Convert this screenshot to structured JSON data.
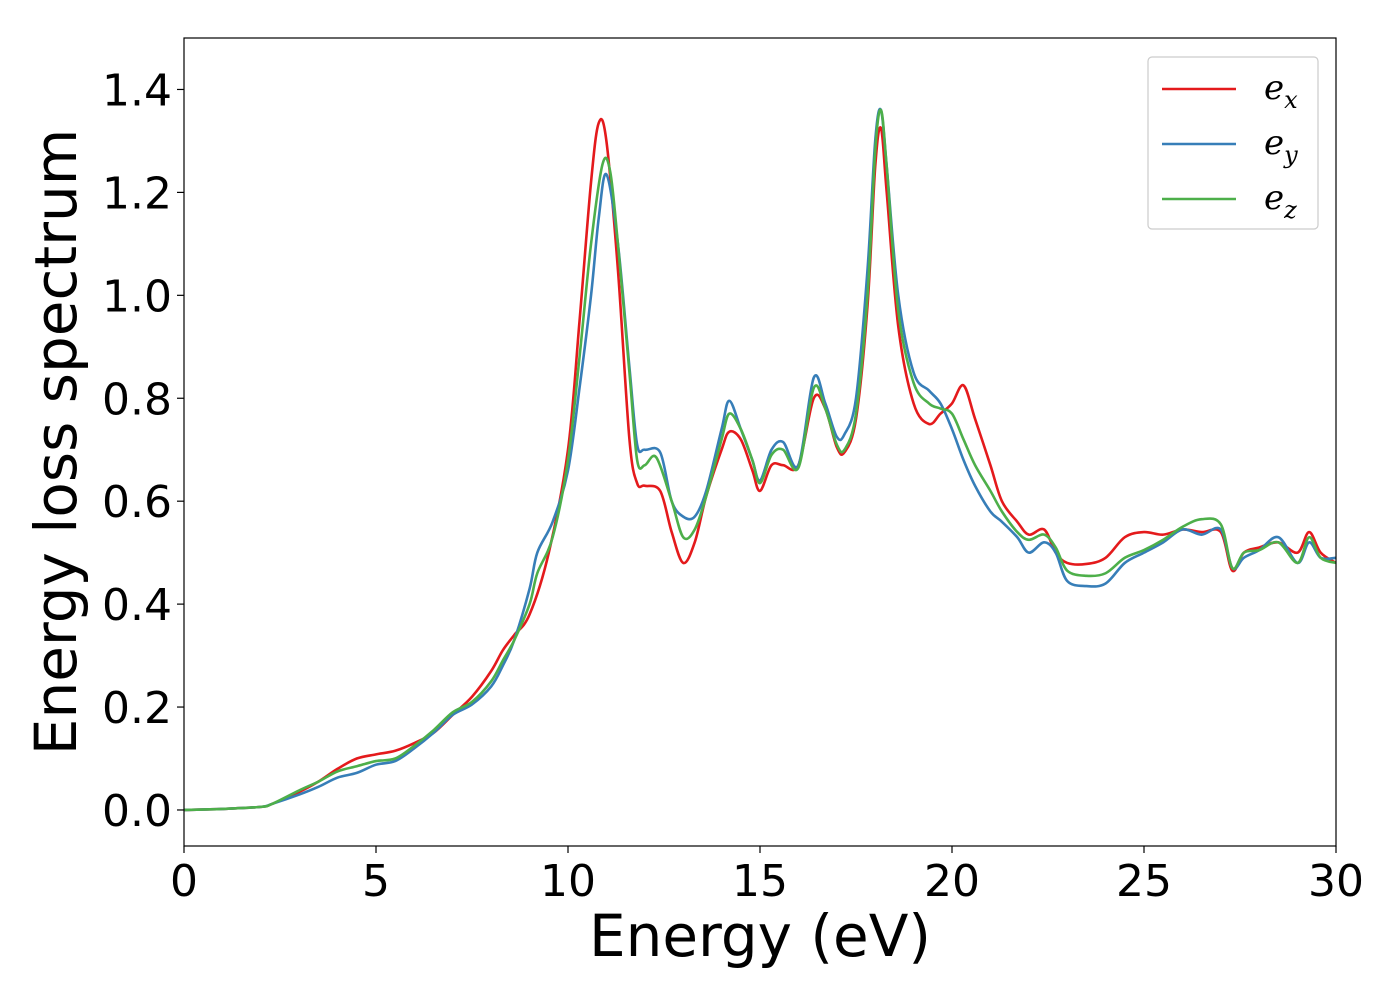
{
  "chart_data": {
    "type": "line",
    "xlabel": "Energy (eV)",
    "ylabel": "Energy loss spectrum",
    "xlim": [
      0,
      30
    ],
    "ylim": [
      -0.07,
      1.5
    ],
    "xticks": [
      0,
      5,
      10,
      15,
      20,
      25,
      30
    ],
    "yticks": [
      0.0,
      0.2,
      0.4,
      0.6,
      0.8,
      1.0,
      1.2,
      1.4
    ],
    "xtick_labels": [
      "0",
      "5",
      "10",
      "15",
      "20",
      "25",
      "30"
    ],
    "ytick_labels": [
      "0.0",
      "0.2",
      "0.4",
      "0.6",
      "0.8",
      "1.0",
      "1.2",
      "1.4"
    ],
    "grid": false,
    "legend_position": "top-right",
    "series": [
      {
        "name": "e_x",
        "label_base": "e",
        "label_sub": "x",
        "color": "#e41a1c",
        "x": [
          0,
          1,
          2,
          2.3,
          3,
          3.5,
          4,
          4.5,
          5,
          5.5,
          6,
          6.5,
          7,
          7.5,
          8,
          8.3,
          8.6,
          9,
          9.5,
          10,
          10.3,
          10.6,
          10.8,
          11,
          11.3,
          11.6,
          11.8,
          12,
          12.4,
          12.7,
          13,
          13.3,
          13.6,
          14,
          14.2,
          14.5,
          14.8,
          15,
          15.3,
          15.6,
          16,
          16.4,
          16.7,
          17,
          17.2,
          17.5,
          17.8,
          18,
          18.15,
          18.3,
          18.6,
          19,
          19.4,
          19.7,
          20,
          20.3,
          20.6,
          21,
          21.3,
          21.7,
          22,
          22.4,
          22.7,
          23,
          23.5,
          24,
          24.5,
          25,
          25.5,
          26,
          26.5,
          27,
          27.3,
          27.6,
          28,
          28.5,
          29,
          29.3,
          29.6,
          30
        ],
        "y": [
          0.0,
          0.002,
          0.006,
          0.012,
          0.035,
          0.055,
          0.08,
          0.1,
          0.108,
          0.115,
          0.13,
          0.15,
          0.185,
          0.22,
          0.27,
          0.31,
          0.34,
          0.38,
          0.5,
          0.7,
          0.95,
          1.22,
          1.335,
          1.3,
          1.05,
          0.72,
          0.635,
          0.63,
          0.62,
          0.54,
          0.48,
          0.52,
          0.61,
          0.7,
          0.735,
          0.72,
          0.66,
          0.62,
          0.67,
          0.67,
          0.67,
          0.8,
          0.78,
          0.705,
          0.695,
          0.76,
          0.98,
          1.25,
          1.325,
          1.2,
          0.94,
          0.79,
          0.75,
          0.77,
          0.79,
          0.825,
          0.76,
          0.67,
          0.6,
          0.56,
          0.535,
          0.545,
          0.5,
          0.48,
          0.478,
          0.49,
          0.53,
          0.54,
          0.535,
          0.545,
          0.54,
          0.54,
          0.465,
          0.5,
          0.51,
          0.52,
          0.5,
          0.54,
          0.5,
          0.48
        ]
      },
      {
        "name": "e_y",
        "label_base": "e",
        "label_sub": "y",
        "color": "#377eb8",
        "x": [
          0,
          1,
          2,
          2.3,
          3,
          3.5,
          4,
          4.5,
          5,
          5.5,
          6,
          6.5,
          7,
          7.5,
          8,
          8.3,
          8.6,
          9,
          9.2,
          9.6,
          10,
          10.3,
          10.6,
          10.8,
          11,
          11.3,
          11.6,
          11.8,
          12,
          12.4,
          12.7,
          13,
          13.3,
          13.6,
          14,
          14.2,
          14.5,
          14.8,
          15,
          15.3,
          15.6,
          16,
          16.4,
          16.7,
          17,
          17.2,
          17.5,
          17.8,
          18,
          18.15,
          18.3,
          18.6,
          19,
          19.4,
          19.7,
          20,
          20.3,
          20.6,
          21,
          21.3,
          21.7,
          22,
          22.4,
          22.7,
          23,
          23.5,
          24,
          24.5,
          25,
          25.5,
          26,
          26.5,
          27,
          27.3,
          27.6,
          28,
          28.5,
          29,
          29.3,
          29.6,
          30
        ],
        "y": [
          0.0,
          0.002,
          0.006,
          0.012,
          0.03,
          0.045,
          0.063,
          0.072,
          0.088,
          0.095,
          0.12,
          0.15,
          0.185,
          0.205,
          0.24,
          0.28,
          0.33,
          0.43,
          0.5,
          0.56,
          0.66,
          0.82,
          1.0,
          1.15,
          1.235,
          1.1,
          0.86,
          0.71,
          0.7,
          0.695,
          0.6,
          0.57,
          0.57,
          0.62,
          0.74,
          0.795,
          0.74,
          0.68,
          0.64,
          0.7,
          0.715,
          0.67,
          0.84,
          0.79,
          0.725,
          0.73,
          0.8,
          1.05,
          1.3,
          1.36,
          1.25,
          1.0,
          0.85,
          0.815,
          0.79,
          0.74,
          0.68,
          0.63,
          0.58,
          0.56,
          0.53,
          0.5,
          0.52,
          0.5,
          0.445,
          0.435,
          0.44,
          0.48,
          0.5,
          0.52,
          0.545,
          0.535,
          0.545,
          0.47,
          0.49,
          0.505,
          0.53,
          0.48,
          0.52,
          0.49,
          0.49
        ]
      },
      {
        "name": "e_z",
        "label_base": "e",
        "label_sub": "z",
        "color": "#4daf4a",
        "x": [
          0,
          1,
          2,
          2.3,
          3,
          3.5,
          4,
          4.5,
          5,
          5.5,
          6,
          6.5,
          7,
          7.5,
          8,
          8.3,
          8.6,
          9,
          9.2,
          9.6,
          10,
          10.3,
          10.6,
          10.9,
          11.1,
          11.3,
          11.6,
          11.8,
          12,
          12.3,
          12.7,
          13,
          13.3,
          13.6,
          14,
          14.2,
          14.5,
          14.8,
          15,
          15.3,
          15.6,
          16,
          16.4,
          16.7,
          17,
          17.2,
          17.5,
          17.8,
          18,
          18.15,
          18.3,
          18.6,
          19,
          19.4,
          19.7,
          20,
          20.3,
          20.6,
          21,
          21.3,
          21.7,
          22,
          22.4,
          22.7,
          23,
          23.5,
          24,
          24.5,
          25,
          25.5,
          26,
          26.5,
          27,
          27.3,
          27.6,
          28,
          28.5,
          29,
          29.3,
          29.6,
          30
        ],
        "y": [
          0.0,
          0.002,
          0.006,
          0.012,
          0.038,
          0.055,
          0.075,
          0.085,
          0.095,
          0.1,
          0.125,
          0.155,
          0.19,
          0.21,
          0.25,
          0.29,
          0.33,
          0.4,
          0.46,
          0.53,
          0.68,
          0.88,
          1.1,
          1.255,
          1.24,
          1.1,
          0.85,
          0.68,
          0.67,
          0.685,
          0.6,
          0.53,
          0.545,
          0.61,
          0.72,
          0.77,
          0.74,
          0.68,
          0.635,
          0.69,
          0.7,
          0.665,
          0.82,
          0.78,
          0.71,
          0.7,
          0.77,
          1.0,
          1.28,
          1.36,
          1.25,
          0.97,
          0.83,
          0.79,
          0.78,
          0.77,
          0.72,
          0.67,
          0.62,
          0.58,
          0.54,
          0.525,
          0.535,
          0.51,
          0.465,
          0.455,
          0.46,
          0.49,
          0.505,
          0.525,
          0.55,
          0.565,
          0.555,
          0.47,
          0.5,
          0.505,
          0.52,
          0.48,
          0.53,
          0.49,
          0.48
        ]
      }
    ]
  }
}
